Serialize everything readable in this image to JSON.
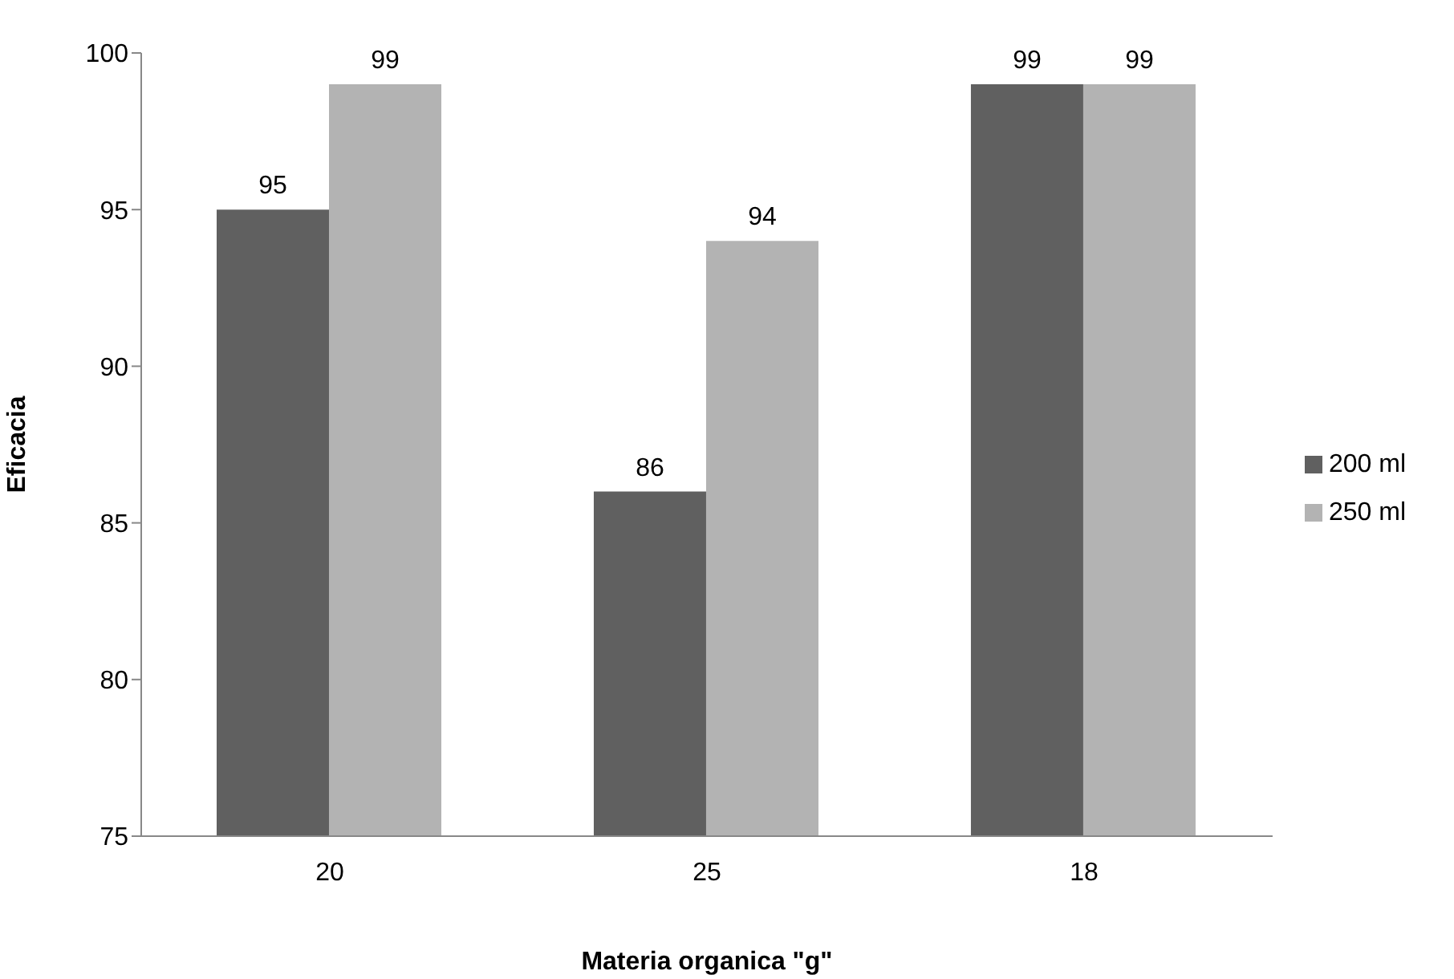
{
  "chart_data": {
    "type": "bar",
    "xlabel": "Materia organica \"g\"",
    "ylabel": "Eficacia",
    "categories": [
      "20",
      "25",
      "18"
    ],
    "series": [
      {
        "name": "200 ml",
        "color": "#606060",
        "values": [
          95,
          86,
          99
        ]
      },
      {
        "name": "250 ml",
        "color": "#b3b3b3",
        "values": [
          99,
          94,
          99
        ]
      }
    ],
    "ylim": [
      75,
      100
    ],
    "yticks": [
      75,
      80,
      85,
      90,
      95,
      100
    ],
    "grid": false,
    "legend": "right",
    "data_labels": true
  }
}
